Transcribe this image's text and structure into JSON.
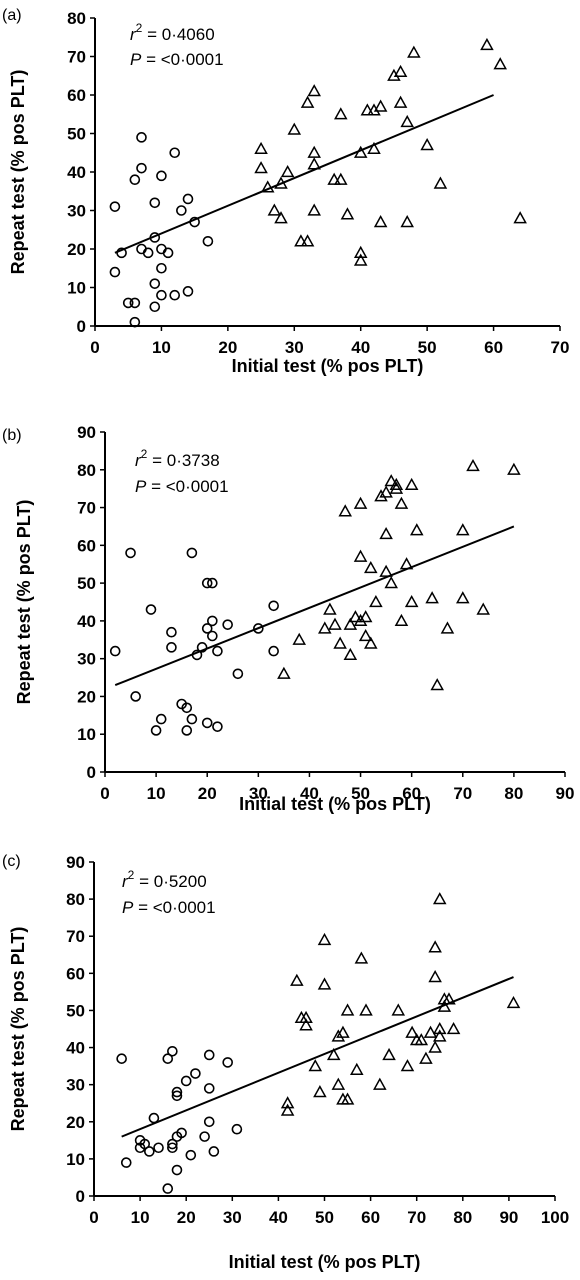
{
  "chart_data": [
    {
      "type": "scatter",
      "panel_label": "(a)",
      "stats": {
        "r2": "= 0·4060",
        "r2_prefix": "r",
        "r2_sup": "2",
        "p": "= <0·0001",
        "p_prefix": "P"
      },
      "xlabel": "Initial test  (% pos PLT)",
      "ylabel": "Repeat test (% pos PLT)",
      "xlim": [
        0,
        70
      ],
      "ylim": [
        0,
        80
      ],
      "xticks": [
        0,
        10,
        20,
        30,
        40,
        50,
        60,
        70
      ],
      "yticks": [
        0,
        10,
        20,
        30,
        40,
        50,
        60,
        70,
        80
      ],
      "grid": false,
      "series": [
        {
          "marker": "circle",
          "points": [
            [
              3,
              31
            ],
            [
              3,
              14
            ],
            [
              4,
              19
            ],
            [
              5,
              6
            ],
            [
              6,
              6
            ],
            [
              6,
              38
            ],
            [
              6,
              1
            ],
            [
              7,
              20
            ],
            [
              7,
              41
            ],
            [
              7,
              49
            ],
            [
              8,
              19
            ],
            [
              9,
              32
            ],
            [
              9,
              23
            ],
            [
              9,
              11
            ],
            [
              9,
              5
            ],
            [
              10,
              15
            ],
            [
              10,
              39
            ],
            [
              10,
              20
            ],
            [
              10,
              8
            ],
            [
              11,
              19
            ],
            [
              12,
              45
            ],
            [
              12,
              8
            ],
            [
              13,
              30
            ],
            [
              14,
              9
            ],
            [
              14,
              33
            ],
            [
              15,
              27
            ],
            [
              17,
              22
            ]
          ]
        },
        {
          "marker": "triangle",
          "points": [
            [
              25,
              46
            ],
            [
              25,
              41
            ],
            [
              26,
              36
            ],
            [
              27,
              30
            ],
            [
              28,
              28
            ],
            [
              28,
              37
            ],
            [
              29,
              40
            ],
            [
              30,
              51
            ],
            [
              31,
              22
            ],
            [
              32,
              22
            ],
            [
              32,
              58
            ],
            [
              33,
              61
            ],
            [
              33,
              45
            ],
            [
              33,
              42
            ],
            [
              33,
              30
            ],
            [
              36,
              38
            ],
            [
              37,
              38
            ],
            [
              37,
              55
            ],
            [
              38,
              29
            ],
            [
              40,
              45
            ],
            [
              40,
              19
            ],
            [
              40,
              17
            ],
            [
              41,
              56
            ],
            [
              42,
              56
            ],
            [
              42,
              46
            ],
            [
              43,
              57
            ],
            [
              43,
              27
            ],
            [
              45,
              65
            ],
            [
              46,
              58
            ],
            [
              46,
              66
            ],
            [
              47,
              27
            ],
            [
              47,
              53
            ],
            [
              48,
              71
            ],
            [
              50,
              47
            ],
            [
              52,
              37
            ],
            [
              59,
              73
            ],
            [
              61,
              68
            ],
            [
              64,
              28
            ]
          ]
        }
      ],
      "fit_line": {
        "x": [
          3,
          60
        ],
        "y": [
          19,
          60
        ]
      }
    },
    {
      "type": "scatter",
      "panel_label": "(b)",
      "stats": {
        "r2": "= 0·3738",
        "r2_prefix": "r",
        "r2_sup": "2",
        "p": "= <0·0001",
        "p_prefix": "P"
      },
      "xlabel": "Initial test  (% pos PLT)",
      "ylabel": "Repeat test  (%  pos PLT)",
      "xlim": [
        0,
        90
      ],
      "ylim": [
        0,
        90
      ],
      "xticks": [
        0,
        10,
        20,
        30,
        40,
        50,
        60,
        70,
        80,
        90
      ],
      "yticks": [
        0,
        10,
        20,
        30,
        40,
        50,
        60,
        70,
        80,
        90
      ],
      "grid": false,
      "series": [
        {
          "marker": "circle",
          "points": [
            [
              2,
              32
            ],
            [
              5,
              58
            ],
            [
              6,
              20
            ],
            [
              9,
              43
            ],
            [
              10,
              11
            ],
            [
              11,
              14
            ],
            [
              13,
              37
            ],
            [
              13,
              33
            ],
            [
              15,
              18
            ],
            [
              16,
              17
            ],
            [
              16,
              11
            ],
            [
              17,
              58
            ],
            [
              17,
              14
            ],
            [
              18,
              31
            ],
            [
              19,
              33
            ],
            [
              20,
              38
            ],
            [
              20,
              50
            ],
            [
              20,
              13
            ],
            [
              21,
              50
            ],
            [
              21,
              40
            ],
            [
              21,
              36
            ],
            [
              22,
              32
            ],
            [
              22,
              12
            ],
            [
              24,
              39
            ],
            [
              26,
              26
            ],
            [
              30,
              38
            ],
            [
              33,
              32
            ],
            [
              33,
              44
            ]
          ]
        },
        {
          "marker": "triangle",
          "points": [
            [
              38,
              35
            ],
            [
              35,
              26
            ],
            [
              43,
              38
            ],
            [
              44,
              43
            ],
            [
              45,
              39
            ],
            [
              46,
              34
            ],
            [
              47,
              69
            ],
            [
              48,
              31
            ],
            [
              48,
              39
            ],
            [
              49,
              41
            ],
            [
              50,
              40
            ],
            [
              50,
              71
            ],
            [
              50,
              57
            ],
            [
              51,
              41
            ],
            [
              51,
              36
            ],
            [
              52,
              34
            ],
            [
              52,
              54
            ],
            [
              53,
              45
            ],
            [
              54,
              73
            ],
            [
              55,
              74
            ],
            [
              55,
              63
            ],
            [
              55,
              53
            ],
            [
              56,
              50
            ],
            [
              56,
              77
            ],
            [
              57,
              75
            ],
            [
              57,
              76
            ],
            [
              58,
              71
            ],
            [
              58,
              40
            ],
            [
              59,
              55
            ],
            [
              60,
              45
            ],
            [
              60,
              76
            ],
            [
              61,
              64
            ],
            [
              64,
              46
            ],
            [
              65,
              23
            ],
            [
              67,
              38
            ],
            [
              70,
              46
            ],
            [
              70,
              64
            ],
            [
              72,
              81
            ],
            [
              74,
              43
            ],
            [
              80,
              80
            ]
          ]
        }
      ],
      "fit_line": {
        "x": [
          2,
          80
        ],
        "y": [
          23,
          65
        ]
      }
    },
    {
      "type": "scatter",
      "panel_label": "(c)",
      "stats": {
        "r2": "= 0·5200",
        "r2_prefix": "r",
        "r2_sup": "2",
        "p": "= <0·0001",
        "p_prefix": "P"
      },
      "xlabel": "Initial test  (% pos PLT)",
      "ylabel": "Repeat test (% pos PLT)",
      "xlim": [
        0,
        100
      ],
      "ylim": [
        0,
        90
      ],
      "xticks": [
        0,
        10,
        20,
        30,
        40,
        50,
        60,
        70,
        80,
        90,
        100
      ],
      "yticks": [
        0,
        10,
        20,
        30,
        40,
        50,
        60,
        70,
        80,
        90
      ],
      "grid": false,
      "series": [
        {
          "marker": "circle",
          "points": [
            [
              6,
              37
            ],
            [
              7,
              9
            ],
            [
              10,
              15
            ],
            [
              10,
              13
            ],
            [
              11,
              14
            ],
            [
              12,
              12
            ],
            [
              13,
              21
            ],
            [
              14,
              13
            ],
            [
              16,
              2
            ],
            [
              16,
              37
            ],
            [
              17,
              39
            ],
            [
              17,
              13
            ],
            [
              17,
              14
            ],
            [
              18,
              7
            ],
            [
              18,
              16
            ],
            [
              18,
              28
            ],
            [
              18,
              27
            ],
            [
              19,
              17
            ],
            [
              20,
              31
            ],
            [
              21,
              11
            ],
            [
              22,
              33
            ],
            [
              24,
              16
            ],
            [
              25,
              20
            ],
            [
              25,
              38
            ],
            [
              25,
              29
            ],
            [
              26,
              12
            ],
            [
              29,
              36
            ],
            [
              31,
              18
            ]
          ]
        },
        {
          "marker": "triangle",
          "points": [
            [
              42,
              25
            ],
            [
              42,
              23
            ],
            [
              44,
              58
            ],
            [
              45,
              48
            ],
            [
              46,
              46
            ],
            [
              46,
              48
            ],
            [
              48,
              35
            ],
            [
              49,
              28
            ],
            [
              50,
              69
            ],
            [
              50,
              57
            ],
            [
              52,
              38
            ],
            [
              53,
              30
            ],
            [
              53,
              43
            ],
            [
              54,
              26
            ],
            [
              54,
              44
            ],
            [
              55,
              50
            ],
            [
              55,
              26
            ],
            [
              57,
              34
            ],
            [
              58,
              64
            ],
            [
              59,
              50
            ],
            [
              62,
              30
            ],
            [
              64,
              38
            ],
            [
              66,
              50
            ],
            [
              68,
              35
            ],
            [
              69,
              44
            ],
            [
              70,
              42
            ],
            [
              71,
              42
            ],
            [
              72,
              37
            ],
            [
              73,
              44
            ],
            [
              74,
              59
            ],
            [
              74,
              40
            ],
            [
              74,
              67
            ],
            [
              75,
              80
            ],
            [
              75,
              45
            ],
            [
              75,
              43
            ],
            [
              76,
              51
            ],
            [
              76,
              53
            ],
            [
              77,
              53
            ],
            [
              78,
              45
            ],
            [
              91,
              52
            ]
          ]
        }
      ],
      "fit_line": {
        "x": [
          6,
          91
        ],
        "y": [
          16,
          59
        ]
      }
    }
  ]
}
